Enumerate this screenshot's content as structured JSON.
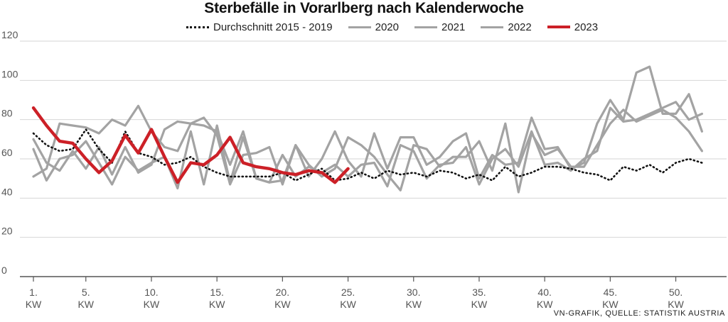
{
  "chart_data": {
    "type": "line",
    "title": "Sterbefälle in Vorarlberg nach Kalenderwoche",
    "xlabel": "",
    "ylabel": "",
    "xlim": [
      1,
      53
    ],
    "ylim": [
      0,
      120
    ],
    "yticks": [
      0,
      20,
      40,
      60,
      80,
      100,
      120
    ],
    "grid": true,
    "xticks": [
      {
        "week": 1,
        "label": "1.",
        "unit": "KW"
      },
      {
        "week": 5,
        "label": "5.",
        "unit": "KW"
      },
      {
        "week": 10,
        "label": "10.",
        "unit": "KW"
      },
      {
        "week": 15,
        "label": "15.",
        "unit": "KW"
      },
      {
        "week": 20,
        "label": "20.",
        "unit": "KW"
      },
      {
        "week": 25,
        "label": "25.",
        "unit": "KW"
      },
      {
        "week": 30,
        "label": "30.",
        "unit": "KW"
      },
      {
        "week": 35,
        "label": "35.",
        "unit": "KW"
      },
      {
        "week": 40,
        "label": "40.",
        "unit": "KW"
      },
      {
        "week": 45,
        "label": "45.",
        "unit": "KW"
      },
      {
        "week": 50,
        "label": "50.",
        "unit": "KW"
      }
    ],
    "series": [
      {
        "name": "Durchschnitt 2015 - 2019",
        "style": "dotted",
        "color": "#111111",
        "values": [
          73,
          67,
          64,
          65,
          75,
          65,
          58,
          74,
          63,
          61,
          57,
          58,
          61,
          56,
          53,
          51,
          51,
          51,
          51,
          53,
          49,
          52,
          55,
          49,
          50,
          53,
          50,
          54,
          52,
          53,
          51,
          54,
          53,
          50,
          52,
          49,
          56,
          51,
          53,
          56,
          56,
          55,
          53,
          52,
          49,
          56,
          54,
          57,
          53,
          58,
          60,
          58
        ]
      },
      {
        "name": "2020",
        "style": "solid",
        "color": "#a3a3a3",
        "values": [
          51,
          55,
          78,
          77,
          76,
          73,
          80,
          77,
          87,
          74,
          66,
          64,
          78,
          77,
          74,
          57,
          74,
          50,
          48,
          49,
          67,
          51,
          60,
          74,
          59,
          51,
          73,
          55,
          71,
          71,
          57,
          61,
          69,
          73,
          50,
          62,
          57,
          58,
          81,
          65,
          66,
          55,
          58,
          78,
          90,
          80,
          104,
          107,
          83,
          83,
          93,
          74
        ]
      },
      {
        "name": "2021",
        "style": "solid",
        "color": "#a3a3a3",
        "values": [
          65,
          49,
          60,
          62,
          69,
          58,
          47,
          61,
          54,
          58,
          61,
          45,
          74,
          47,
          77,
          48,
          71,
          50,
          48,
          62,
          51,
          56,
          53,
          57,
          51,
          57,
          58,
          46,
          67,
          64,
          50,
          57,
          58,
          66,
          47,
          60,
          65,
          56,
          74,
          57,
          58,
          54,
          60,
          64,
          86,
          79,
          80,
          83,
          86,
          89,
          80,
          83
        ]
      },
      {
        "name": "2022",
        "style": "solid",
        "color": "#a3a3a3",
        "values": [
          70,
          58,
          54,
          64,
          55,
          66,
          52,
          66,
          53,
          57,
          75,
          79,
          78,
          81,
          72,
          47,
          62,
          63,
          66,
          47,
          67,
          57,
          51,
          55,
          71,
          67,
          61,
          52,
          44,
          67,
          65,
          56,
          61,
          61,
          69,
          54,
          78,
          43,
          73,
          62,
          65,
          56,
          56,
          67,
          78,
          85,
          79,
          82,
          85,
          81,
          74,
          64
        ]
      },
      {
        "name": "2023",
        "style": "bold",
        "color": "#cc2027",
        "values": [
          86,
          77,
          69,
          68,
          60,
          53,
          59,
          72,
          63,
          75,
          61,
          48,
          58,
          57,
          62,
          71,
          58,
          56,
          55,
          53,
          52,
          54,
          53,
          48,
          55
        ]
      }
    ]
  },
  "legend": {
    "avg": "Durchschnitt 2015 - 2019",
    "y2020": "2020",
    "y2021": "2021",
    "y2022": "2022",
    "y2023": "2023"
  },
  "source": "VN-GRAFIK, QUELLE: STATISTIK AUSTRIA"
}
